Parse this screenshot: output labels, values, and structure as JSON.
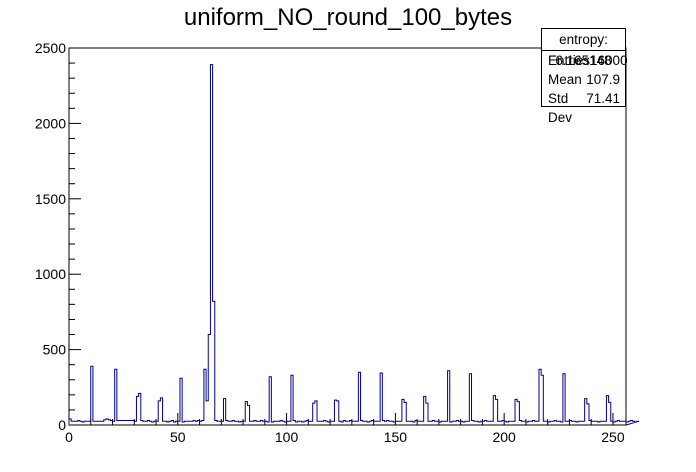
{
  "chart_data": {
    "type": "bar",
    "title": "uniform_NO_round_100_bytes",
    "xlabel": "",
    "ylabel": "",
    "xlim": [
      0,
      256
    ],
    "ylim": [
      0,
      2500
    ],
    "x_ticks": [
      "0",
      "50",
      "100",
      "150",
      "200",
      "250"
    ],
    "y_ticks": [
      "0",
      "500",
      "1000",
      "1500",
      "2000",
      "2500"
    ],
    "bins": 256,
    "values": [
      40,
      25,
      25,
      25,
      30,
      25,
      20,
      25,
      25,
      25,
      390,
      25,
      25,
      25,
      25,
      25,
      35,
      40,
      35,
      30,
      25,
      370,
      30,
      30,
      30,
      30,
      30,
      30,
      30,
      30,
      25,
      190,
      210,
      30,
      25,
      25,
      30,
      25,
      20,
      25,
      25,
      160,
      180,
      25,
      25,
      20,
      25,
      30,
      20,
      25,
      25,
      310,
      20,
      25,
      25,
      25,
      25,
      30,
      25,
      30,
      25,
      30,
      370,
      160,
      600,
      2390,
      820,
      30,
      25,
      25,
      25,
      175,
      30,
      25,
      25,
      30,
      25,
      25,
      20,
      25,
      25,
      155,
      130,
      25,
      25,
      30,
      25,
      25,
      30,
      25,
      25,
      20,
      320,
      20,
      25,
      25,
      25,
      30,
      25,
      20,
      25,
      25,
      330,
      30,
      20,
      25,
      25,
      20,
      25,
      30,
      25,
      25,
      145,
      160,
      25,
      25,
      25,
      30,
      25,
      20,
      25,
      25,
      165,
      160,
      25,
      20,
      30,
      25,
      25,
      30,
      25,
      25,
      25,
      350,
      30,
      25,
      25,
      20,
      25,
      30,
      25,
      25,
      25,
      345,
      30,
      25,
      30,
      25,
      25,
      20,
      25,
      25,
      25,
      170,
      150,
      25,
      25,
      25,
      20,
      30,
      25,
      25,
      25,
      190,
      145,
      25,
      25,
      30,
      25,
      25,
      20,
      25,
      25,
      25,
      360,
      20,
      25,
      25,
      30,
      25,
      25,
      20,
      25,
      25,
      340,
      30,
      25,
      25,
      20,
      25,
      25,
      30,
      25,
      25,
      25,
      195,
      170,
      25,
      25,
      30,
      25,
      20,
      25,
      25,
      25,
      170,
      155,
      30,
      25,
      25,
      20,
      25,
      25,
      30,
      25,
      25,
      370,
      330,
      25,
      25,
      20,
      25,
      25,
      30,
      25,
      25,
      20,
      340,
      25,
      25,
      30,
      25,
      25,
      20,
      25,
      25,
      25,
      175,
      140,
      30,
      25,
      25,
      25,
      20,
      25,
      25,
      25,
      195,
      150,
      25,
      20,
      25,
      30,
      25,
      25,
      25,
      20,
      25,
      30,
      25,
      20,
      25
    ],
    "line_color": "#00008b",
    "stats": {
      "name": "entropy: 6.165148",
      "rows": [
        {
          "label": "Entries",
          "value": "16000"
        },
        {
          "label": "Mean",
          "value": "107.9"
        },
        {
          "label": "Std Dev",
          "value": "71.41"
        }
      ]
    }
  }
}
